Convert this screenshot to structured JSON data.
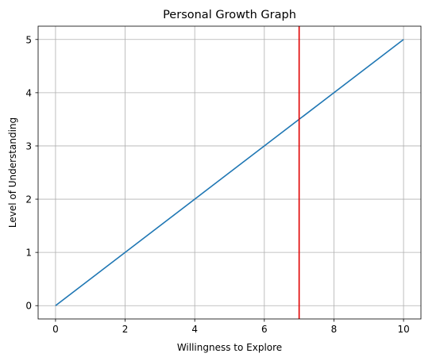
{
  "chart_data": {
    "type": "line",
    "title": "Personal Growth Graph",
    "xlabel": "Willingness to Explore",
    "ylabel": "Level of Understanding",
    "xlim": [
      -0.5,
      10.5
    ],
    "ylim": [
      -0.25,
      5.25
    ],
    "xticks": [
      0,
      2,
      4,
      6,
      8,
      10
    ],
    "yticks": [
      0,
      1,
      2,
      3,
      4,
      5
    ],
    "grid": true,
    "series": [
      {
        "x": [
          0,
          10
        ],
        "y": [
          0,
          5
        ],
        "color": "#1f77b4"
      }
    ],
    "vlines": [
      {
        "x": 7,
        "color": "#e00000"
      }
    ]
  }
}
